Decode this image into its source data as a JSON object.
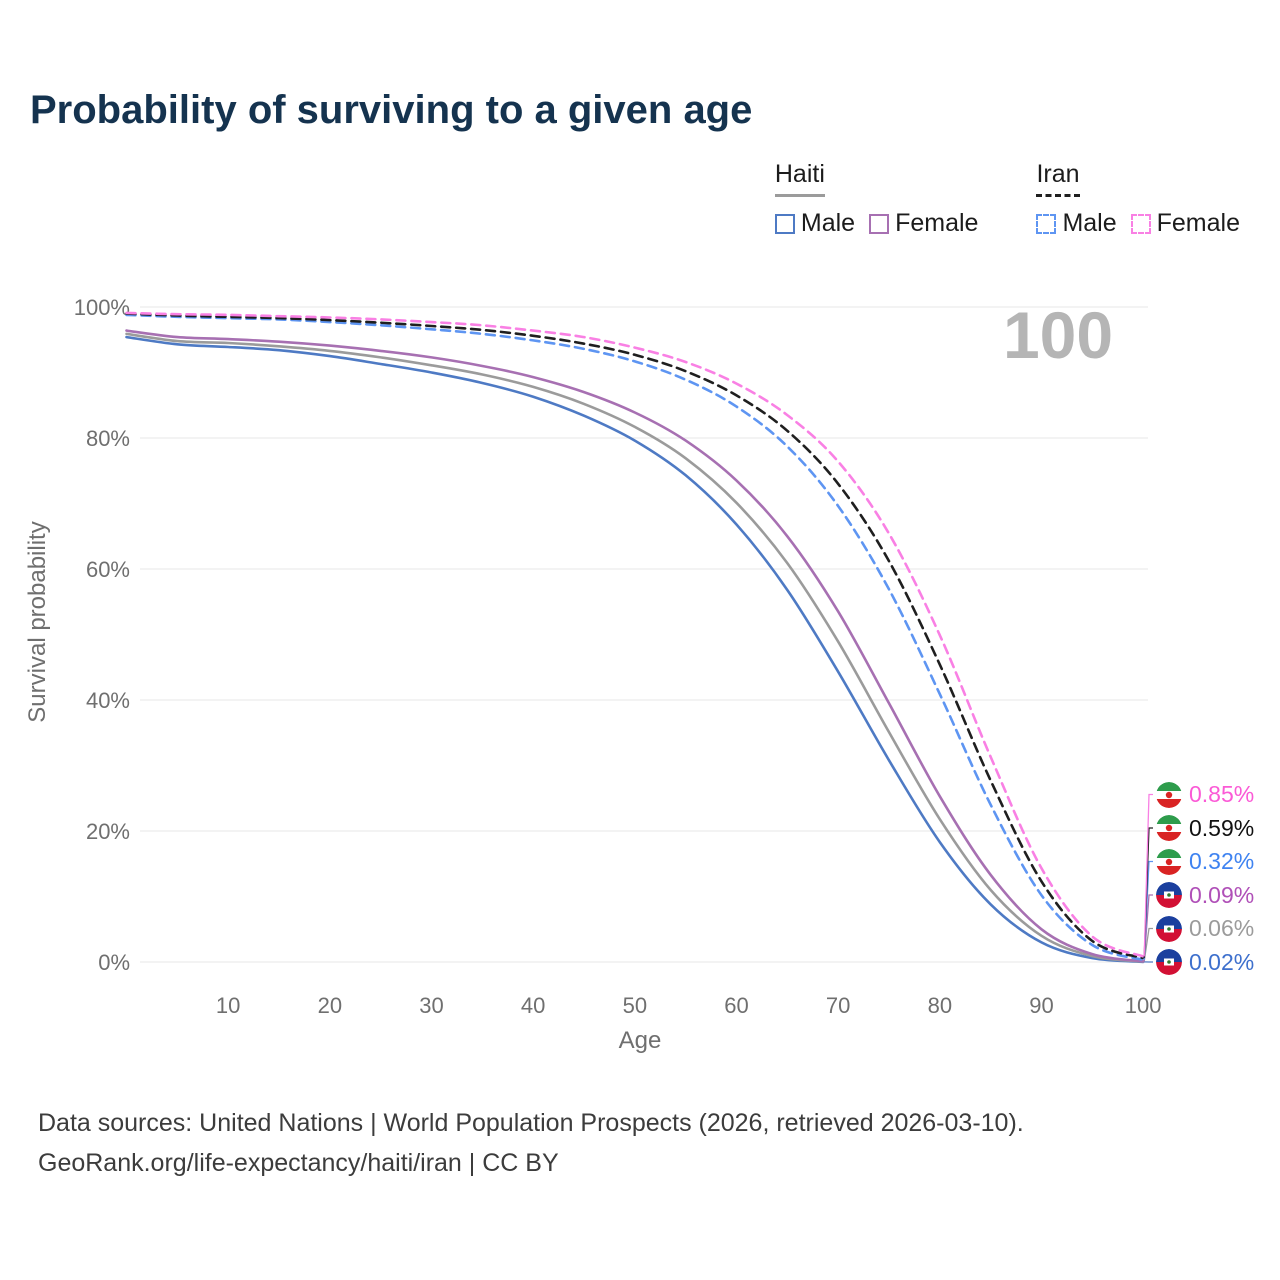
{
  "title": "Probability of surviving to a given age",
  "watermark": "100",
  "legend": {
    "groups": [
      {
        "label": "Haiti",
        "items": [
          {
            "label": "Male"
          },
          {
            "label": "Female"
          }
        ]
      },
      {
        "label": "Iran",
        "items": [
          {
            "label": "Male"
          },
          {
            "label": "Female"
          }
        ]
      }
    ]
  },
  "chart_data": {
    "type": "line",
    "title": "Probability of surviving to a given age",
    "xlabel": "Age",
    "ylabel": "Survival probability",
    "x": [
      0,
      5,
      10,
      15,
      20,
      25,
      30,
      35,
      40,
      45,
      50,
      55,
      60,
      65,
      70,
      75,
      80,
      85,
      90,
      95,
      100
    ],
    "x_tick_values": [
      10,
      20,
      30,
      40,
      50,
      60,
      70,
      80,
      90,
      100
    ],
    "y_tick_values": [
      0,
      20,
      40,
      60,
      80,
      100
    ],
    "y_tick_labels": [
      "0%",
      "20%",
      "40%",
      "60%",
      "80%",
      "100%"
    ],
    "xlim": [
      0,
      108
    ],
    "ylim": [
      0,
      100
    ],
    "grid": "horizontal",
    "legend_position": "top-right",
    "series": [
      {
        "id": "haiti_male",
        "name": "Haiti Male",
        "country": "Haiti",
        "sex": "Male",
        "color": "#4e7ac4",
        "label_color": "#3e70cd",
        "dashed": false,
        "flag": "haiti-flag",
        "end_label": "0.02%",
        "values": [
          95.4,
          94.3,
          93.9,
          93.4,
          92.5,
          91.3,
          90.0,
          88.4,
          86.3,
          83.4,
          79.6,
          74.3,
          66.8,
          56.8,
          44.3,
          30.8,
          18.3,
          8.8,
          3.0,
          0.6,
          0.02
        ]
      },
      {
        "id": "haiti_both",
        "name": "Haiti",
        "country": "Haiti",
        "sex": "Both",
        "color": "#9b9b9b",
        "label_color": "#9b9b9b",
        "dashed": false,
        "flag": "haiti-flag",
        "end_label": "0.06%",
        "values": [
          95.9,
          94.8,
          94.5,
          94.0,
          93.3,
          92.3,
          91.1,
          89.7,
          87.8,
          85.2,
          81.7,
          76.9,
          70.1,
          60.9,
          48.9,
          35.1,
          21.8,
          11.0,
          4.0,
          0.9,
          0.06
        ]
      },
      {
        "id": "haiti_female",
        "name": "Haiti Female",
        "country": "Haiti",
        "sex": "Female",
        "color": "#a770b2",
        "label_color": "#b050b8",
        "dashed": false,
        "flag": "haiti-flag",
        "end_label": "0.09%",
        "values": [
          96.4,
          95.4,
          95.1,
          94.7,
          94.1,
          93.3,
          92.3,
          91.0,
          89.3,
          87.0,
          83.9,
          79.6,
          73.5,
          65.0,
          53.5,
          39.5,
          25.3,
          13.3,
          5.0,
          1.2,
          0.09
        ]
      },
      {
        "id": "iran_male",
        "name": "Iran Male",
        "country": "Iran",
        "sex": "Male",
        "color": "#5e95f2",
        "label_color": "#3f83f1",
        "dashed": true,
        "flag": "iran-flag",
        "end_label": "0.32%",
        "values": [
          98.8,
          98.5,
          98.3,
          98.1,
          97.7,
          97.2,
          96.6,
          95.9,
          94.9,
          93.6,
          91.7,
          88.9,
          84.8,
          78.7,
          69.6,
          56.9,
          40.9,
          24.0,
          10.2,
          2.6,
          0.32
        ]
      },
      {
        "id": "iran_both",
        "name": "Iran",
        "country": "Iran",
        "sex": "Both",
        "color": "#1f1f1f",
        "label_color": "#111111",
        "dashed": true,
        "flag": "iran-flag",
        "end_label": "0.59%",
        "values": [
          99.0,
          98.7,
          98.5,
          98.3,
          98.0,
          97.6,
          97.1,
          96.5,
          95.6,
          94.4,
          92.7,
          90.2,
          86.5,
          81.1,
          73.0,
          61.2,
          45.4,
          27.7,
          12.3,
          3.2,
          0.59
        ]
      },
      {
        "id": "iran_female",
        "name": "Iran Female",
        "country": "Iran",
        "sex": "Female",
        "color": "#f980e4",
        "label_color": "#fb5ad6",
        "dashed": true,
        "flag": "iran-flag",
        "end_label": "0.85%",
        "values": [
          99.1,
          98.9,
          98.8,
          98.6,
          98.4,
          98.1,
          97.7,
          97.2,
          96.4,
          95.4,
          93.8,
          91.6,
          88.3,
          83.5,
          76.4,
          65.4,
          49.9,
          31.3,
          14.3,
          3.9,
          0.85
        ]
      }
    ]
  },
  "footer": {
    "line1": "Data sources: United Nations | World Population Prospects (2026, retrieved 2026-03-10).",
    "line2": "GeoRank.org/life-expectancy/haiti/iran | CC BY"
  }
}
